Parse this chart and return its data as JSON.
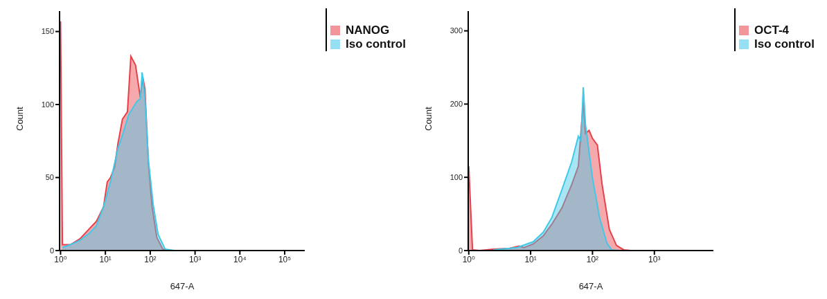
{
  "chart_data": [
    {
      "type": "area",
      "xlabel": "647-A",
      "ylabel": "Count",
      "log": "x",
      "legend": "top right",
      "xlim": [
        0.95,
        280000
      ],
      "xticks": [
        {
          "value": 1,
          "label": "10⁰"
        },
        {
          "value": 10,
          "label": "10¹"
        },
        {
          "value": 100,
          "label": "10²"
        },
        {
          "value": 1000,
          "label": "10³"
        },
        {
          "value": 10000,
          "label": "10⁴"
        },
        {
          "value": 100000,
          "label": "10⁵"
        }
      ],
      "ylim": [
        0,
        164
      ],
      "yticks": [
        0,
        50,
        100,
        150
      ],
      "series": [
        {
          "name": "NANOG",
          "color": "#e8404a",
          "x": [
            1,
            1.1,
            1.65,
            2.7,
            4.4,
            6.3,
            7.6,
            9.1,
            11,
            13,
            16,
            19,
            24,
            31,
            37,
            47,
            60,
            68,
            76,
            91,
            110,
            140,
            190,
            275,
            280000
          ],
          "values": [
            157,
            4,
            4,
            8,
            15,
            20,
            25,
            30,
            47,
            50,
            57,
            73,
            90,
            95,
            133,
            127,
            105,
            119,
            111,
            60,
            30,
            9,
            1,
            0,
            0
          ]
        },
        {
          "name": "Iso control",
          "color": "#40c8e8",
          "x": [
            1.1,
            1.65,
            2.7,
            4.4,
            6.3,
            9.1,
            13,
            19,
            24,
            33,
            50,
            60,
            66,
            76,
            91,
            117,
            150,
            215,
            350,
            280000
          ],
          "values": [
            2,
            4,
            7,
            12,
            17,
            30,
            47,
            70,
            79,
            93,
            102,
            104,
            122,
            105,
            62,
            31,
            11,
            1,
            0,
            0
          ]
        }
      ]
    },
    {
      "type": "area",
      "xlabel": "647-A",
      "ylabel": "Count",
      "log": "x",
      "legend": "top right",
      "xlim": [
        0.98,
        9000
      ],
      "xticks": [
        {
          "value": 1,
          "label": "10⁰"
        },
        {
          "value": 10,
          "label": "10¹"
        },
        {
          "value": 100,
          "label": "10²"
        },
        {
          "value": 1000,
          "label": "10³"
        }
      ],
      "ylim": [
        0,
        327
      ],
      "yticks": [
        0,
        100,
        200,
        300
      ],
      "series": [
        {
          "name": "OCT-4",
          "color": "#e8404a",
          "x": [
            1,
            1.15,
            1.5,
            2.5,
            4.6,
            6.5,
            7.8,
            11,
            16,
            22,
            32,
            46,
            59,
            71,
            77,
            88,
            100,
            120,
            143,
            187,
            244,
            320,
            415,
            9000
          ],
          "values": [
            115,
            1,
            0,
            2,
            3,
            6,
            4,
            9,
            20,
            36,
            58,
            90,
            115,
            204,
            160,
            164,
            153,
            144,
            90,
            29,
            7,
            1,
            0,
            0
          ]
        },
        {
          "name": "Iso control",
          "color": "#40c8e8",
          "x": [
            2.5,
            6,
            11,
            16,
            22,
            32,
            46,
            59,
            65,
            71,
            77,
            100,
            130,
            171,
            204,
            265,
            9000
          ],
          "values": [
            1,
            4,
            12,
            25,
            45,
            83,
            121,
            156,
            150,
            223,
            172,
            99,
            45,
            10,
            1,
            0,
            0
          ]
        }
      ]
    }
  ]
}
